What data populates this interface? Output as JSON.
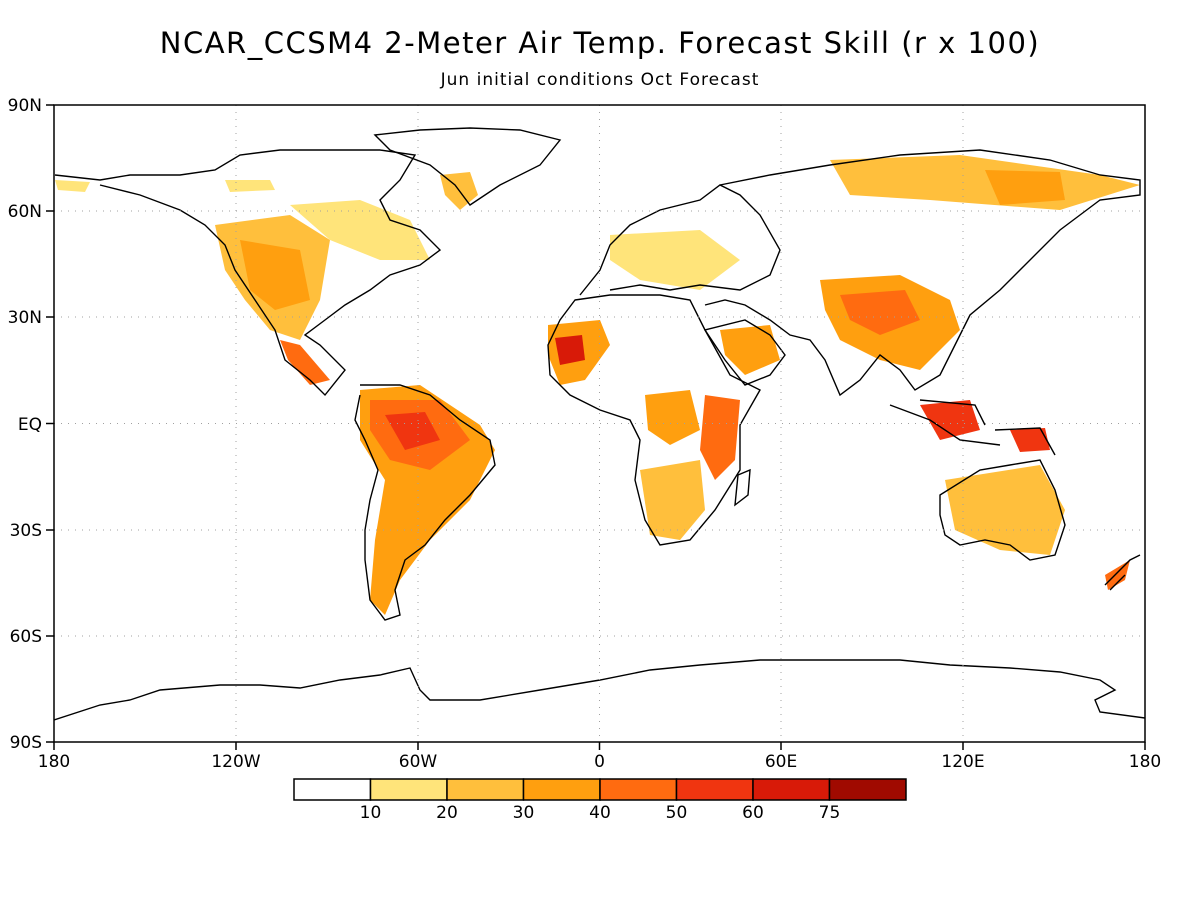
{
  "title": "NCAR_CCSM4 2-Meter Air Temp. Forecast Skill (r x 100)",
  "subtitle": "Jun initial conditions  Oct Forecast",
  "lat_labels": [
    "90N",
    "60N",
    "30N",
    "EQ",
    "30S",
    "60S",
    "90S"
  ],
  "lon_labels": [
    "180",
    "120W",
    "60W",
    "0",
    "60E",
    "120E",
    "180"
  ],
  "legend": {
    "thresholds": [
      "10",
      "20",
      "30",
      "40",
      "50",
      "60",
      "75"
    ],
    "colors": [
      "#ffffff",
      "#ffe47a",
      "#ffbf3c",
      "#ff9f0f",
      "#ff6b10",
      "#f03510",
      "#d81a08",
      "#a00a00"
    ]
  },
  "map_style": {
    "land_outline": "#000000",
    "grid_line": "#a0a0a0",
    "grid_style": "dotted"
  }
}
